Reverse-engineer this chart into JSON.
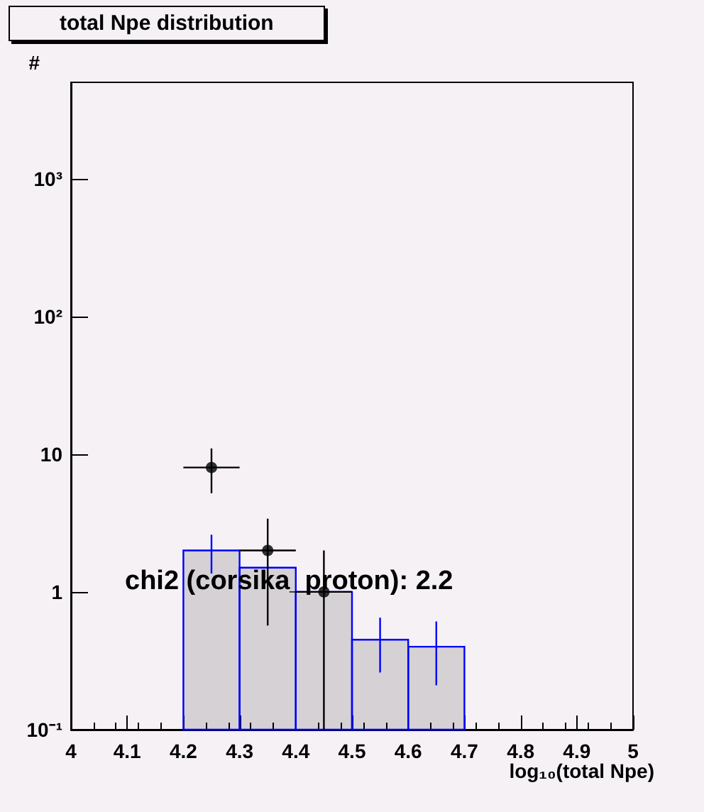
{
  "chart_data": {
    "type": "histogram",
    "title": "total Npe distribution",
    "xlabel": "log₁₀(total Npe)",
    "ylabel": "#",
    "annotations": [
      "chi2 (corsika_proton): 2.2"
    ],
    "log": "y",
    "grid": false,
    "xlim": [
      4,
      5
    ],
    "xticks": [
      4,
      4.1,
      4.2,
      4.3,
      4.4,
      4.5,
      4.6,
      4.7,
      4.8,
      4.9,
      5
    ],
    "ylim": [
      0.1,
      5000
    ],
    "yticks": [
      {
        "value": 0.1,
        "label": "10⁻¹"
      },
      1,
      10,
      {
        "value": 100,
        "label": "10²"
      },
      {
        "value": 1000,
        "label": "10³"
      }
    ],
    "series": [
      {
        "color": "#0000ff",
        "bins": [
          4.2,
          4.3,
          4.4,
          4.5,
          4.6,
          4.7
        ],
        "values": [
          2.0,
          1.5,
          1.0,
          0.45,
          0.4
        ],
        "errors": [
          [
            1.36,
            2.6
          ],
          null,
          null,
          [
            0.26,
            0.65
          ],
          [
            0.21,
            0.61
          ]
        ]
      },
      {
        "type": "scatter",
        "color": "#000000",
        "marker": "circle",
        "x": [
          4.25,
          4.35,
          4.45
        ],
        "values": [
          8,
          2,
          1
        ],
        "errors": [
          [
            5.2,
            11
          ],
          [
            0.57,
            3.4
          ],
          [
            0.1,
            2
          ]
        ],
        "xerrors": [
          0.05,
          0.05,
          0.05
        ]
      }
    ]
  }
}
